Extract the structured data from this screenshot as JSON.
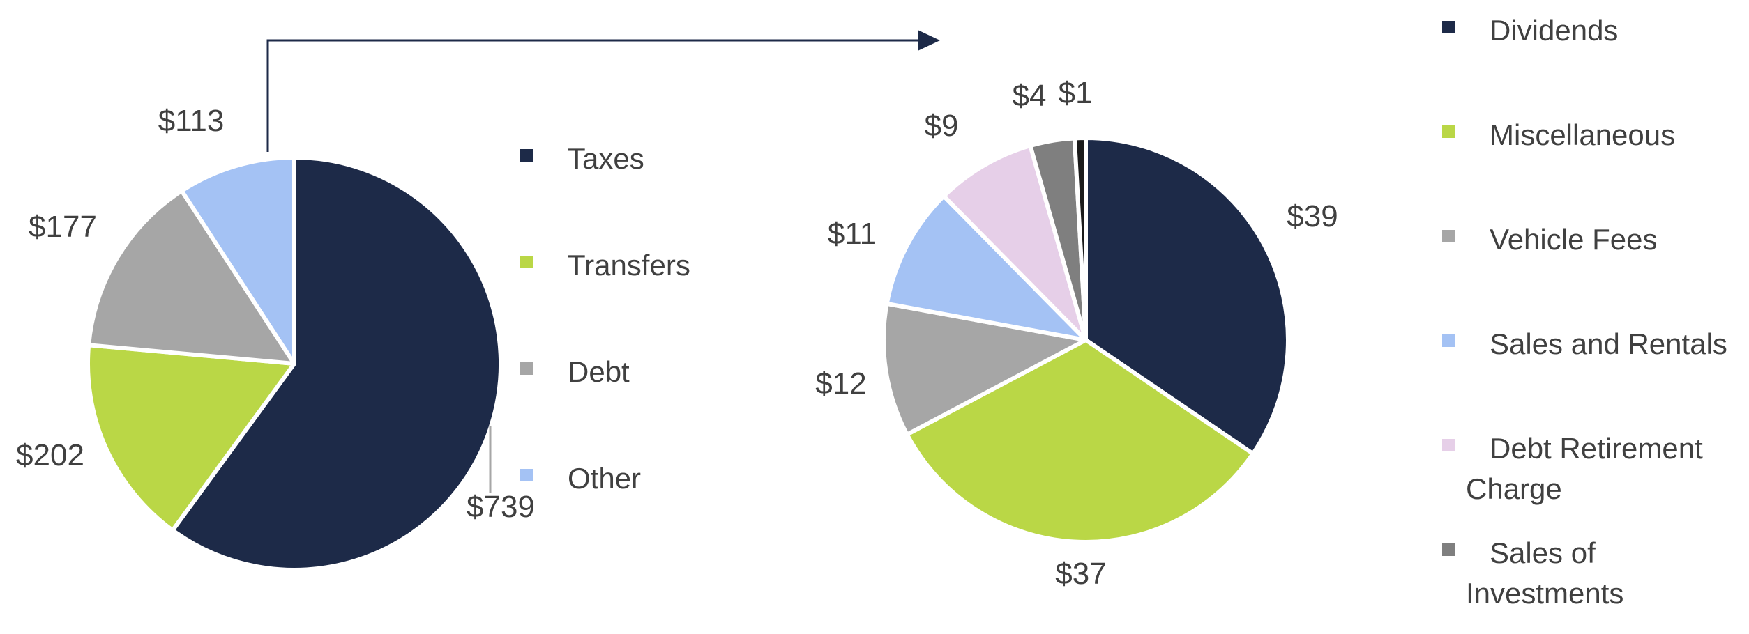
{
  "chart_data": [
    {
      "type": "pie",
      "categories": [
        "Taxes",
        "Transfers",
        "Debt",
        "Other"
      ],
      "values": [
        739,
        202,
        177,
        113
      ],
      "value_labels": [
        "$739",
        "$202",
        "$177",
        "$113"
      ],
      "colors": [
        "#1d2a48",
        "#bad746",
        "#a6a6a6",
        "#a4c2f4"
      ],
      "legend": {
        "entries": [
          {
            "lines": [
              "Taxes"
            ]
          },
          {
            "lines": [
              "Transfers"
            ]
          },
          {
            "lines": [
              "Debt"
            ]
          },
          {
            "lines": [
              "Other"
            ]
          }
        ]
      }
    },
    {
      "type": "pie",
      "categories": [
        "Dividends",
        "Miscellaneous",
        "Vehicle Fees",
        "Sales and Rentals",
        "Debt Retirement Charge",
        "Sales of Investments",
        ""
      ],
      "values": [
        39,
        37,
        12,
        11,
        9,
        4,
        1
      ],
      "value_labels": [
        "$39",
        "$37",
        "$12",
        "$11",
        "$9",
        "$4",
        "$1"
      ],
      "colors": [
        "#1d2a48",
        "#bad746",
        "#a6a6a6",
        "#a4c2f4",
        "#e6cfe8",
        "#7f7f7f",
        "#1a1a1a"
      ],
      "legend": {
        "entries": [
          {
            "lines": [
              "Dividends"
            ]
          },
          {
            "lines": [
              "Miscellaneous"
            ]
          },
          {
            "lines": [
              "Vehicle Fees"
            ]
          },
          {
            "lines": [
              "Sales and Rentals"
            ]
          },
          {
            "lines": [
              "Debt Retirement",
              "Charge"
            ]
          },
          {
            "lines": [
              "Sales of",
              "Investments"
            ]
          }
        ]
      }
    }
  ],
  "connector": {
    "from_chart": 0,
    "to_chart": 1,
    "color": "#1d2a48"
  }
}
